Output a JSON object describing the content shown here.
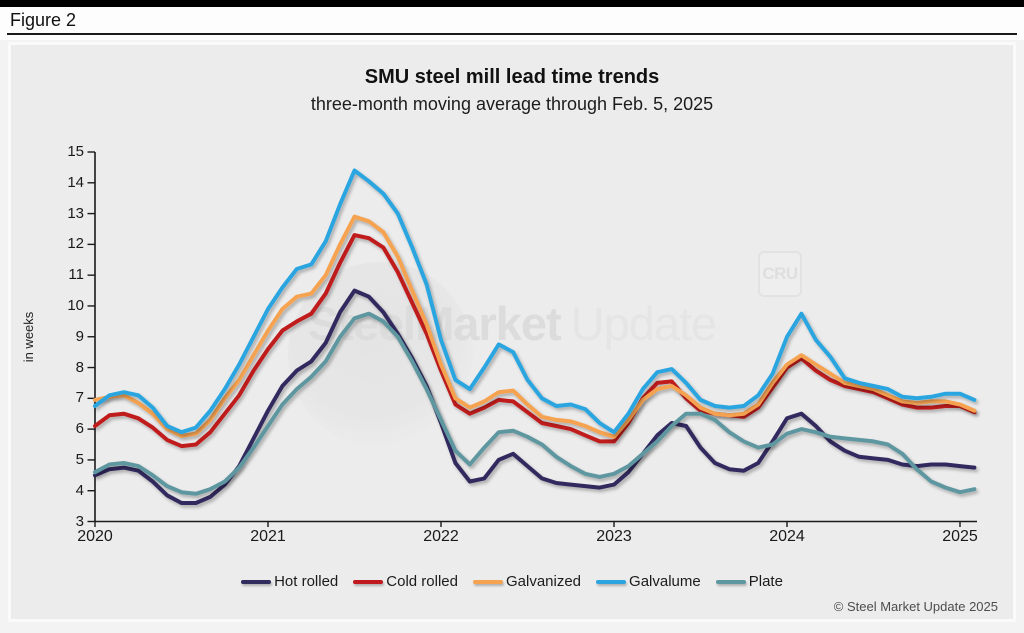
{
  "header": {
    "figure_label": "Figure 2"
  },
  "chart": {
    "title": "SMU steel mill lead time trends",
    "subtitle": "three-month moving average through Feb. 5, 2025",
    "y_axis_label": "in weeks",
    "copyright": "© Steel Market Update 2025"
  },
  "watermark": {
    "brand_bold": "SteelMarket",
    "brand_light": "Update",
    "corner_logo": "CRU"
  },
  "chart_data": {
    "type": "line",
    "title": "SMU steel mill lead time trends",
    "subtitle": "three-month moving average through Feb. 5, 2025",
    "ylabel": "in weeks",
    "ylim": [
      3,
      15
    ],
    "y_ticks": [
      15,
      14,
      13,
      12,
      11,
      10,
      9,
      8,
      7,
      6,
      5,
      4,
      3
    ],
    "x_start_year": 2020,
    "x_months_per_step": 1,
    "x_tick_labels": [
      "2020",
      "2021",
      "2022",
      "2023",
      "2024",
      "2025"
    ],
    "grid": false,
    "legend_position": "bottom",
    "axis_color": "#1a1a1a",
    "series": [
      {
        "name": "Hot rolled",
        "color": "#302c5e",
        "values": [
          4.5,
          4.7,
          4.75,
          4.65,
          4.3,
          3.85,
          3.6,
          3.6,
          3.8,
          4.2,
          4.8,
          5.7,
          6.6,
          7.4,
          7.9,
          8.2,
          8.8,
          9.8,
          10.5,
          10.3,
          9.8,
          9.1,
          8.3,
          7.4,
          6.2,
          4.9,
          4.3,
          4.4,
          5.0,
          5.2,
          4.8,
          4.4,
          4.25,
          4.2,
          4.15,
          4.1,
          4.2,
          4.6,
          5.2,
          5.8,
          6.2,
          6.1,
          5.4,
          4.9,
          4.7,
          4.65,
          4.9,
          5.6,
          6.35,
          6.5,
          6.1,
          5.6,
          5.3,
          5.1,
          5.05,
          5.0,
          4.85,
          4.8,
          4.85,
          4.85,
          4.8,
          4.75
        ]
      },
      {
        "name": "Cold rolled",
        "color": "#c01a1e",
        "values": [
          6.1,
          6.45,
          6.5,
          6.35,
          6.05,
          5.65,
          5.45,
          5.5,
          5.9,
          6.5,
          7.1,
          7.9,
          8.6,
          9.2,
          9.5,
          9.75,
          10.4,
          11.4,
          12.3,
          12.2,
          11.9,
          11.1,
          10.1,
          9.1,
          7.9,
          6.8,
          6.5,
          6.7,
          6.95,
          6.9,
          6.55,
          6.2,
          6.1,
          6.0,
          5.8,
          5.6,
          5.6,
          6.2,
          7.0,
          7.5,
          7.55,
          7.0,
          6.6,
          6.5,
          6.45,
          6.4,
          6.7,
          7.35,
          8.0,
          8.3,
          7.9,
          7.6,
          7.4,
          7.3,
          7.2,
          7.0,
          6.8,
          6.7,
          6.7,
          6.75,
          6.75,
          6.55
        ]
      },
      {
        "name": "Galvanized",
        "color": "#f5a351",
        "values": [
          6.95,
          7.05,
          7.1,
          6.85,
          6.5,
          6.0,
          5.78,
          5.85,
          6.3,
          7.0,
          7.6,
          8.4,
          9.2,
          9.9,
          10.3,
          10.4,
          11.0,
          12.0,
          12.9,
          12.75,
          12.4,
          11.6,
          10.5,
          9.4,
          8.1,
          7.0,
          6.7,
          6.9,
          7.2,
          7.25,
          6.8,
          6.4,
          6.3,
          6.25,
          6.1,
          5.9,
          5.75,
          6.3,
          6.95,
          7.3,
          7.4,
          7.1,
          6.7,
          6.5,
          6.45,
          6.5,
          6.8,
          7.5,
          8.1,
          8.4,
          8.1,
          7.8,
          7.5,
          7.4,
          7.3,
          7.1,
          6.9,
          6.85,
          6.9,
          6.9,
          6.8,
          6.6
        ]
      },
      {
        "name": "Galvalume",
        "color": "#2ca5e0",
        "values": [
          6.75,
          7.1,
          7.2,
          7.1,
          6.7,
          6.1,
          5.9,
          6.05,
          6.6,
          7.3,
          8.1,
          9.0,
          9.9,
          10.6,
          11.2,
          11.35,
          12.1,
          13.3,
          14.4,
          14.05,
          13.65,
          13.0,
          11.9,
          10.7,
          8.9,
          7.6,
          7.3,
          8.0,
          8.75,
          8.5,
          7.6,
          7.0,
          6.75,
          6.8,
          6.65,
          6.2,
          5.9,
          6.5,
          7.3,
          7.85,
          7.95,
          7.5,
          6.95,
          6.75,
          6.7,
          6.75,
          7.1,
          7.8,
          9.0,
          9.75,
          8.9,
          8.35,
          7.65,
          7.5,
          7.4,
          7.3,
          7.05,
          7.0,
          7.05,
          7.15,
          7.15,
          6.95
        ]
      },
      {
        "name": "Plate",
        "color": "#5e97a0",
        "values": [
          4.6,
          4.85,
          4.9,
          4.8,
          4.5,
          4.15,
          3.95,
          3.9,
          4.05,
          4.3,
          4.75,
          5.4,
          6.1,
          6.8,
          7.3,
          7.7,
          8.2,
          9.0,
          9.6,
          9.75,
          9.5,
          9.0,
          8.2,
          7.3,
          6.3,
          5.3,
          4.85,
          5.4,
          5.9,
          5.95,
          5.75,
          5.5,
          5.1,
          4.8,
          4.55,
          4.45,
          4.55,
          4.8,
          5.2,
          5.6,
          6.1,
          6.5,
          6.5,
          6.3,
          5.9,
          5.6,
          5.4,
          5.5,
          5.85,
          6.0,
          5.9,
          5.75,
          5.7,
          5.65,
          5.6,
          5.5,
          5.2,
          4.7,
          4.3,
          4.1,
          3.95,
          4.05
        ]
      }
    ]
  }
}
